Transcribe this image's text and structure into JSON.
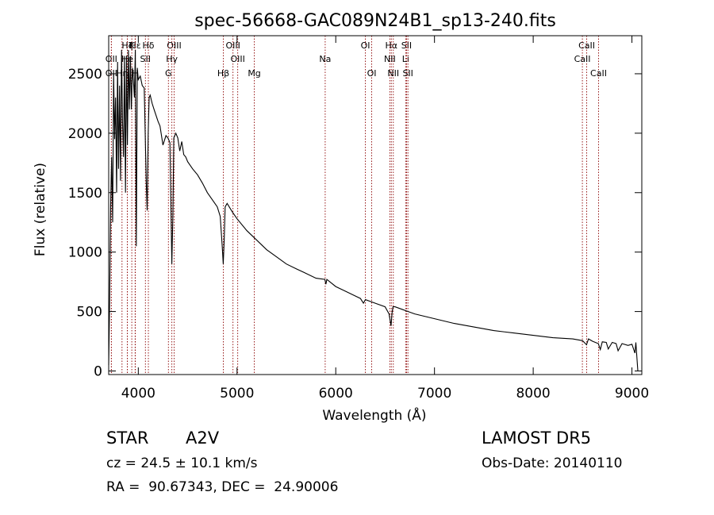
{
  "chart_data": {
    "type": "line",
    "title": "spec-56668-GAC089N24B1_sp13-240.fits",
    "xlabel": "Wavelength (Å)",
    "ylabel": "Flux (relative)",
    "xlim": [
      3700,
      9100
    ],
    "ylim": [
      -30,
      2820
    ],
    "xticks": [
      4000,
      5000,
      6000,
      7000,
      8000,
      9000
    ],
    "yticks": [
      0,
      500,
      1000,
      1500,
      2000,
      2500
    ],
    "grid": false,
    "line_color": "#000000",
    "marker_color": "#8b0000",
    "series": [
      {
        "x": [
          3700,
          3710,
          3720,
          3730,
          3740,
          3750,
          3760,
          3770,
          3780,
          3790,
          3800,
          3810,
          3820,
          3830,
          3840,
          3850,
          3860,
          3870,
          3880,
          3890,
          3900,
          3910,
          3920,
          3930,
          3940,
          3950,
          3960,
          3970,
          3980,
          3990,
          4000,
          4020,
          4040,
          4060,
          4080,
          4090,
          4100,
          4110,
          4120,
          4140,
          4160,
          4180,
          4200,
          4220,
          4250,
          4280,
          4300,
          4320,
          4340,
          4350,
          4360,
          4380,
          4400,
          4420,
          4440,
          4460,
          4480,
          4500,
          4550,
          4600,
          4650,
          4700,
          4750,
          4800,
          4830,
          4850,
          4860,
          4870,
          4880,
          4900,
          4950,
          5000,
          5100,
          5200,
          5300,
          5400,
          5500,
          5600,
          5700,
          5800,
          5890,
          5900,
          5910,
          6000,
          6100,
          6200,
          6250,
          6280,
          6300,
          6400,
          6500,
          6540,
          6560,
          6570,
          6580,
          6600,
          6700,
          6800,
          7000,
          7200,
          7400,
          7600,
          7800,
          8000,
          8200,
          8400,
          8500,
          8540,
          8560,
          8600,
          8660,
          8680,
          8700,
          8740,
          8760,
          8800,
          8840,
          8860,
          8900,
          8960,
          9000,
          9030,
          9040,
          9060
        ],
        "y": [
          50,
          600,
          1400,
          1800,
          1250,
          2500,
          1950,
          2300,
          1500,
          2600,
          1700,
          2400,
          1600,
          2700,
          2100,
          1800,
          2650,
          1500,
          2650,
          1900,
          2700,
          2200,
          2650,
          2200,
          2550,
          2450,
          2300,
          2700,
          1050,
          2550,
          2450,
          2480,
          2400,
          2380,
          1600,
          1350,
          2000,
          2300,
          2320,
          2250,
          2200,
          2150,
          2100,
          2060,
          1900,
          1980,
          1960,
          1920,
          900,
          1300,
          1960,
          2000,
          1960,
          1850,
          1930,
          1820,
          1800,
          1760,
          1700,
          1650,
          1580,
          1500,
          1440,
          1380,
          1300,
          1050,
          900,
          1100,
          1380,
          1410,
          1340,
          1280,
          1180,
          1100,
          1020,
          960,
          900,
          860,
          820,
          780,
          770,
          730,
          770,
          710,
          670,
          630,
          610,
          570,
          600,
          570,
          540,
          480,
          380,
          490,
          540,
          540,
          510,
          480,
          440,
          400,
          370,
          340,
          320,
          300,
          280,
          270,
          255,
          220,
          270,
          250,
          230,
          180,
          245,
          240,
          185,
          240,
          230,
          170,
          230,
          215,
          225,
          150,
          240,
          0
        ]
      }
    ],
    "markers": [
      {
        "label": "Hβ",
        "x": 4861,
        "row": 3
      },
      {
        "label": "Mg",
        "x": 5175,
        "row": 3
      },
      {
        "label": "OIII",
        "x": 4959,
        "row": 1
      },
      {
        "label": "OIII",
        "x": 5007,
        "row": 2
      },
      {
        "label": "Na",
        "x": 5893,
        "row": 2
      },
      {
        "label": "OI",
        "x": 6300,
        "row": 1
      },
      {
        "label": "OI",
        "x": 6364,
        "row": 3
      },
      {
        "label": "Hα",
        "x": 6563,
        "row": 1
      },
      {
        "label": "NII",
        "x": 6548,
        "row": 2
      },
      {
        "label": "NII",
        "x": 6583,
        "row": 3
      },
      {
        "label": "SII",
        "x": 6717,
        "row": 1
      },
      {
        "label": "Li",
        "x": 6708,
        "row": 2
      },
      {
        "label": "SII",
        "x": 6731,
        "row": 3
      },
      {
        "label": "CaII",
        "x": 8542,
        "row": 1
      },
      {
        "label": "CaII",
        "x": 8498,
        "row": 2
      },
      {
        "label": "CaII",
        "x": 8662,
        "row": 3
      },
      {
        "label": "Hδ",
        "x": 4102,
        "row": 1
      },
      {
        "label": "SII",
        "x": 4072,
        "row": 2
      },
      {
        "label": "OIII",
        "x": 4363,
        "row": 1
      },
      {
        "label": "Hγ",
        "x": 4340,
        "row": 2
      },
      {
        "label": "G",
        "x": 4305,
        "row": 3
      },
      {
        "label": "Hε",
        "x": 3970,
        "row": 1
      },
      {
        "label": "Hζ",
        "x": 3889,
        "row": 1
      },
      {
        "label": "K",
        "x": 3934,
        "row": 1
      },
      {
        "label": "OII",
        "x": 3727,
        "row": 2
      },
      {
        "label": "He",
        "x": 3889,
        "row": 2
      },
      {
        "label": "H",
        "x": 3968,
        "row": 3
      },
      {
        "label": "OII",
        "x": 3727,
        "row": 3
      },
      {
        "label": "Hη",
        "x": 3835,
        "row": 3
      }
    ]
  },
  "info": {
    "class": "STAR",
    "subclass": "A2V",
    "survey": "LAMOST DR5",
    "cz": "cz = 24.5 ± 10.1 km/s",
    "obs_date": "Obs-Date: 20140110",
    "radec": "RA =  90.67343, DEC =  24.90006"
  }
}
